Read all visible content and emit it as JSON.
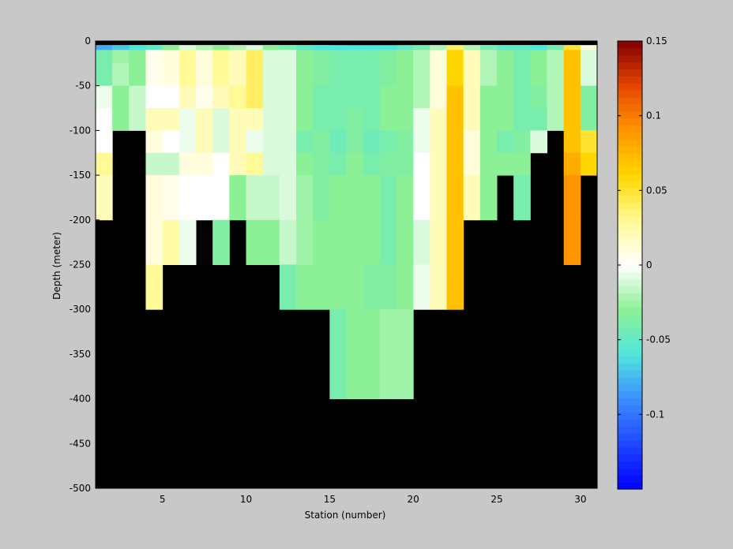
{
  "chart_data": {
    "type": "heatmap",
    "title": "",
    "xlabel": "Station (number)",
    "ylabel": "Depth (meter)",
    "xlim": [
      1,
      31
    ],
    "ylim": [
      -500,
      0
    ],
    "xticks": [
      5,
      10,
      15,
      20,
      25,
      30
    ],
    "yticks": [
      0,
      -50,
      -100,
      -150,
      -200,
      -250,
      -300,
      -350,
      -400,
      -450,
      -500
    ],
    "colorbar": {
      "min": -0.15,
      "max": 0.15,
      "colormap": "jet-white-center",
      "ticks": [
        0.15,
        0.1,
        0.05,
        0,
        -0.05,
        -0.1
      ]
    },
    "background_color": "#000000",
    "stations": [
      1,
      2,
      3,
      4,
      5,
      6,
      7,
      8,
      9,
      10,
      11,
      12,
      13,
      14,
      15,
      16,
      17,
      18,
      19,
      20,
      21,
      22,
      23,
      24,
      25,
      26,
      27,
      28,
      29,
      30
    ],
    "depth_bins_top": [
      0,
      -5,
      -10,
      -25,
      -50,
      -75,
      -100,
      -125,
      -150,
      -200,
      -250,
      -300,
      -400
    ],
    "depth_bins_bottom": [
      -5,
      -10,
      -25,
      -50,
      -75,
      -100,
      -125,
      -150,
      -200,
      -250,
      -300,
      -400,
      -500
    ],
    "values": [
      [
        -0.09,
        -0.08,
        -0.07,
        -0.06,
        -0.05,
        -0.05,
        -0.06,
        -0.06,
        -0.06,
        -0.06,
        -0.05,
        -0.06,
        -0.07,
        -0.07,
        -0.08,
        -0.09,
        -0.09,
        -0.09,
        -0.08,
        -0.07,
        -0.06,
        -0.05,
        -0.06,
        -0.06,
        -0.07,
        -0.07,
        -0.07,
        -0.06,
        -0.05,
        -0.05
      ],
      [
        -0.08,
        -0.07,
        -0.06,
        -0.05,
        -0.03,
        -0.01,
        -0.02,
        -0.03,
        -0.02,
        -0.01,
        -0.03,
        -0.04,
        -0.05,
        -0.06,
        -0.06,
        -0.06,
        -0.06,
        -0.06,
        -0.05,
        -0.04,
        -0.02,
        0.04,
        -0.02,
        -0.04,
        -0.05,
        -0.05,
        -0.06,
        -0.04,
        0.05,
        0.01
      ],
      [
        -0.04,
        -0.025,
        -0.03,
        0.005,
        0.01,
        0.03,
        0.01,
        0.03,
        0.02,
        0.04,
        -0.01,
        -0.01,
        -0.03,
        -0.035,
        -0.04,
        -0.04,
        -0.04,
        -0.035,
        -0.03,
        -0.02,
        0.01,
        0.06,
        0.02,
        -0.02,
        -0.03,
        -0.04,
        -0.03,
        -0.02,
        0.07,
        -0.01
      ],
      [
        -0.04,
        -0.02,
        -0.03,
        0.005,
        0.01,
        0.03,
        0.01,
        0.03,
        0.02,
        0.04,
        -0.01,
        -0.01,
        -0.03,
        -0.035,
        -0.04,
        -0.04,
        -0.04,
        -0.035,
        -0.03,
        -0.02,
        0.01,
        0.06,
        0.02,
        -0.02,
        -0.03,
        -0.04,
        -0.03,
        -0.02,
        0.07,
        -0.01
      ],
      [
        -0.005,
        -0.03,
        -0.015,
        0.0,
        0.0,
        0.02,
        0.005,
        0.02,
        0.03,
        0.04,
        -0.01,
        -0.01,
        -0.03,
        -0.04,
        -0.04,
        -0.04,
        -0.04,
        -0.03,
        -0.03,
        -0.02,
        0.01,
        0.07,
        0.02,
        -0.03,
        -0.03,
        -0.04,
        -0.035,
        -0.02,
        0.07,
        -0.035
      ],
      [
        0.0,
        -0.03,
        -0.015,
        0.02,
        0.02,
        -0.005,
        0.02,
        -0.01,
        0.02,
        0.02,
        -0.01,
        -0.01,
        -0.03,
        -0.04,
        -0.04,
        -0.035,
        -0.04,
        -0.03,
        -0.03,
        -0.005,
        0.02,
        0.07,
        0.02,
        -0.03,
        -0.03,
        -0.04,
        -0.04,
        -0.02,
        0.07,
        -0.035
      ],
      [
        0.0,
        null,
        null,
        0.01,
        0.0,
        -0.005,
        0.02,
        -0.01,
        0.02,
        -0.005,
        -0.01,
        -0.01,
        -0.04,
        -0.035,
        -0.045,
        -0.035,
        -0.045,
        -0.04,
        -0.035,
        -0.005,
        0.02,
        0.07,
        0.01,
        -0.03,
        -0.04,
        -0.035,
        -0.01,
        null,
        0.07,
        0.05
      ],
      [
        0.03,
        null,
        null,
        -0.015,
        -0.015,
        0.01,
        0.01,
        0.0,
        0.02,
        0.03,
        -0.01,
        -0.01,
        -0.03,
        -0.035,
        -0.04,
        -0.03,
        -0.04,
        -0.035,
        -0.035,
        0.0,
        0.02,
        0.07,
        0.01,
        -0.03,
        -0.03,
        -0.03,
        null,
        null,
        0.08,
        0.06
      ],
      [
        0.02,
        null,
        null,
        0.01,
        0.005,
        0.0,
        0.0,
        0.0,
        -0.03,
        -0.015,
        -0.015,
        -0.01,
        -0.025,
        -0.035,
        -0.03,
        -0.03,
        -0.03,
        -0.04,
        -0.03,
        0.0,
        0.02,
        0.07,
        0.02,
        -0.03,
        null,
        -0.04,
        null,
        null,
        0.09,
        null
      ],
      [
        null,
        null,
        null,
        0.01,
        0.025,
        -0.005,
        null,
        -0.035,
        null,
        -0.03,
        -0.03,
        -0.015,
        -0.025,
        -0.03,
        -0.03,
        -0.03,
        -0.03,
        -0.04,
        -0.03,
        -0.01,
        0.02,
        0.07,
        null,
        null,
        null,
        null,
        null,
        null,
        0.09,
        null
      ],
      [
        null,
        null,
        null,
        0.03,
        null,
        null,
        null,
        null,
        null,
        null,
        null,
        -0.04,
        -0.03,
        -0.03,
        -0.03,
        -0.03,
        -0.035,
        -0.035,
        -0.03,
        -0.005,
        0.02,
        0.07,
        null,
        null,
        null,
        null,
        null,
        null,
        null,
        null
      ],
      [
        null,
        null,
        null,
        null,
        null,
        null,
        null,
        null,
        null,
        null,
        null,
        null,
        null,
        null,
        -0.04,
        -0.03,
        -0.03,
        -0.025,
        -0.025,
        null,
        null,
        null,
        null,
        null,
        null,
        null,
        null,
        null,
        null,
        null
      ],
      [
        null,
        null,
        null,
        null,
        null,
        null,
        null,
        null,
        null,
        null,
        null,
        null,
        null,
        null,
        null,
        null,
        null,
        null,
        null,
        null,
        null,
        null,
        null,
        null,
        null,
        null,
        null,
        null,
        null,
        null
      ]
    ]
  }
}
